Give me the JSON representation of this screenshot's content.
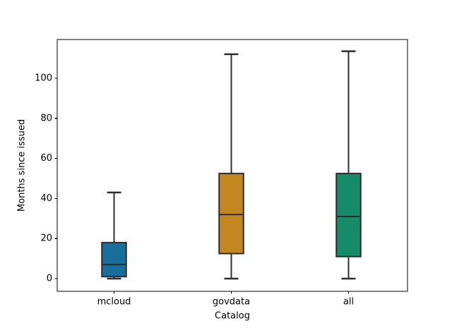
{
  "chart_data": {
    "type": "box",
    "title": "",
    "xlabel": "Catalog",
    "ylabel": "Months since issued",
    "categories": [
      "mcloud",
      "govdata",
      "all"
    ],
    "series": [
      {
        "name": "mcloud",
        "whisker_low": 0,
        "q1": 1,
        "median": 7,
        "q3": 18,
        "whisker_high": 43,
        "color": "#186e9d"
      },
      {
        "name": "govdata",
        "whisker_low": 0,
        "q1": 12.5,
        "median": 32,
        "q3": 52.5,
        "whisker_high": 112,
        "color": "#c3871f"
      },
      {
        "name": "all",
        "whisker_low": 0,
        "q1": 11,
        "median": 31,
        "q3": 52.5,
        "whisker_high": 113.5,
        "color": "#158b6a"
      }
    ],
    "yticks": [
      "0",
      "20",
      "40",
      "60",
      "80",
      "100"
    ],
    "ytick_values": [
      0,
      20,
      40,
      60,
      80,
      100
    ],
    "ylim": [
      -6.3,
      119.4
    ],
    "grid": false,
    "legend": null,
    "line_color": "#2e2e2e",
    "spine_color": "#000000",
    "tick_color": "#000000",
    "background": "#ffffff"
  }
}
